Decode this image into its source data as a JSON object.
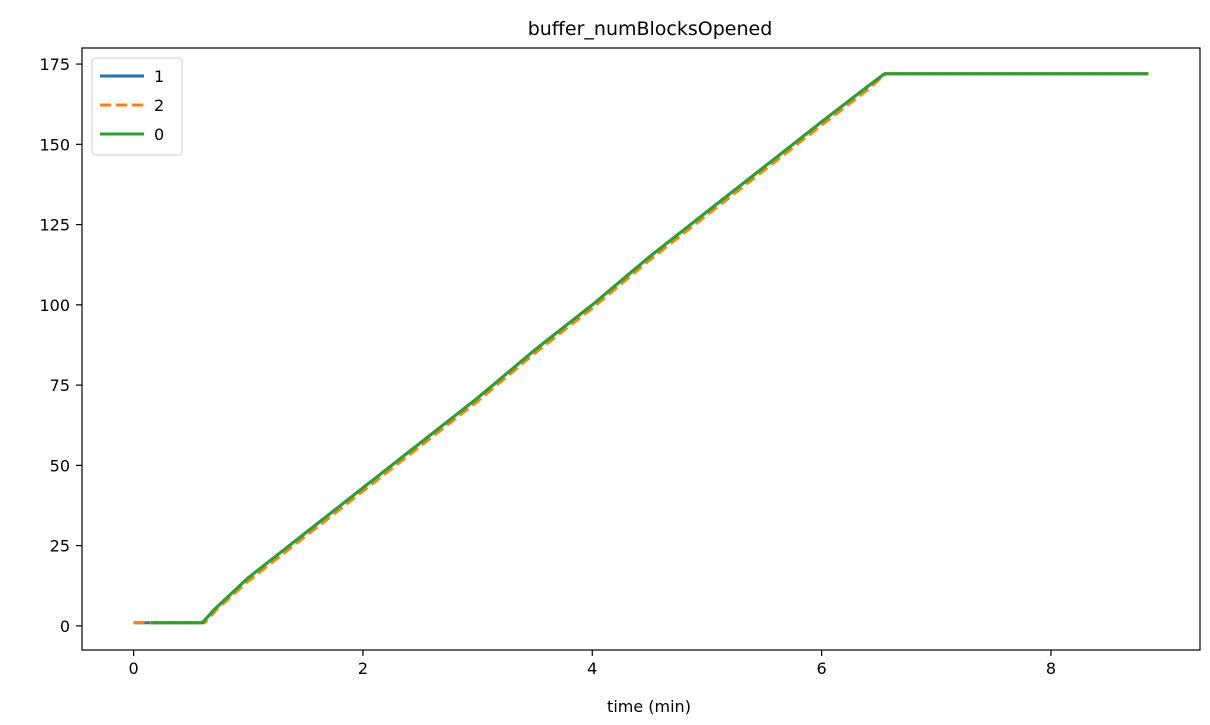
{
  "chart_data": {
    "type": "line",
    "title": "buffer_numBlocksOpened",
    "xlabel": "time (min)",
    "ylabel": "",
    "xlim": [
      -0.45,
      9.3
    ],
    "ylim": [
      -7.5,
      180
    ],
    "xticks": [
      0,
      2,
      4,
      6,
      8
    ],
    "yticks": [
      0,
      25,
      50,
      75,
      100,
      125,
      150,
      175
    ],
    "grid": false,
    "legend": "top-left",
    "series": [
      {
        "name": "1",
        "color": "#1f77b4",
        "style": "solid",
        "x": [
          0.0,
          0.6,
          0.7,
          1.0,
          1.5,
          2.0,
          2.5,
          3.0,
          3.5,
          4.0,
          4.5,
          5.0,
          5.5,
          6.0,
          6.4,
          6.55,
          8.85
        ],
        "y": [
          1,
          1,
          5,
          15,
          29,
          43,
          57,
          71,
          86,
          100,
          115,
          129,
          143,
          157,
          168,
          172,
          172
        ]
      },
      {
        "name": "2",
        "color": "#ff7f0e",
        "style": "dashed",
        "x": [
          0.0,
          0.62,
          0.72,
          1.0,
          1.5,
          2.0,
          2.5,
          3.0,
          3.5,
          4.0,
          4.5,
          5.0,
          5.5,
          6.0,
          6.4,
          6.56,
          8.85
        ],
        "y": [
          1,
          1,
          5,
          14,
          28,
          42,
          56,
          70,
          85,
          99,
          114,
          128,
          142,
          156,
          167,
          172,
          172
        ]
      },
      {
        "name": "0",
        "color": "#2ca02c",
        "style": "solid",
        "x": [
          0.15,
          0.6,
          0.7,
          1.0,
          1.5,
          2.0,
          2.5,
          3.0,
          3.5,
          4.0,
          4.5,
          5.0,
          5.5,
          6.0,
          6.4,
          6.55,
          8.85
        ],
        "y": [
          1,
          1,
          5,
          15,
          29,
          43,
          57,
          71,
          86,
          100,
          115,
          129,
          143,
          157,
          168,
          172,
          172
        ]
      }
    ]
  }
}
